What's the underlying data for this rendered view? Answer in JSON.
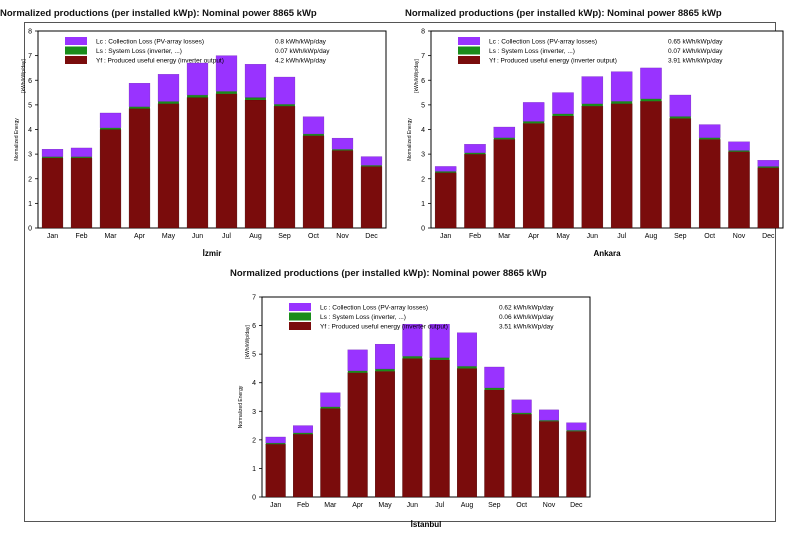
{
  "chart_data": [
    {
      "type": "bar",
      "title": "Normalized productions (per installed kWp):   Nominal power 8865 kWp",
      "city": "İzmir",
      "ylabel_left": "Normalized   Energy",
      "ylabel_right": "[kWh/kWp/day]",
      "ylim": [
        0,
        8
      ],
      "yticks": [
        "0",
        "1",
        "2",
        "3",
        "4",
        "5",
        "6",
        "7",
        "8"
      ],
      "categories": [
        "Jan",
        "Feb",
        "Mar",
        "Apr",
        "May",
        "Jun",
        "Jul",
        "Aug",
        "Sep",
        "Oct",
        "Nov",
        "Dec"
      ],
      "legend": [
        {
          "label": "Lc : Collection Loss (PV-array losses)",
          "value": "0.8 kWh/kWp/day"
        },
        {
          "label": "Ls : System Loss  (inverter, ...)",
          "value": "0.07 kWh/kWp/day"
        },
        {
          "label": "Yf : Produced useful energy  (inverter output)",
          "value": "4.2 kWh/kWp/day"
        }
      ],
      "series": [
        {
          "name": "Yf",
          "values": [
            2.85,
            2.85,
            4.0,
            4.85,
            5.05,
            5.3,
            5.45,
            5.2,
            4.95,
            3.75,
            3.15,
            2.5
          ]
        },
        {
          "name": "Ls",
          "values": [
            0.05,
            0.05,
            0.07,
            0.08,
            0.09,
            0.1,
            0.1,
            0.1,
            0.08,
            0.07,
            0.05,
            0.05
          ]
        },
        {
          "name": "Lc",
          "values": [
            0.3,
            0.35,
            0.6,
            0.95,
            1.1,
            1.3,
            1.45,
            1.35,
            1.1,
            0.7,
            0.45,
            0.35
          ]
        }
      ]
    },
    {
      "type": "bar",
      "title": "Normalized productions (per installed kWp):   Nominal power 8865 kWp",
      "city": "Ankara",
      "ylabel_left": "Normalized   Energy",
      "ylabel_right": "[kWh/kWp/day]",
      "ylim": [
        0,
        8
      ],
      "yticks": [
        "0",
        "1",
        "2",
        "3",
        "4",
        "5",
        "6",
        "7",
        "8"
      ],
      "categories": [
        "Jan",
        "Feb",
        "Mar",
        "Apr",
        "May",
        "Jun",
        "Jul",
        "Aug",
        "Sep",
        "Oct",
        "Nov",
        "Dec"
      ],
      "legend": [
        {
          "label": "Lc : Collection Loss (PV-array losses)",
          "value": "0.65 kWh/kWp/day"
        },
        {
          "label": "Ls : System Loss  (inverter, ...)",
          "value": "0.07 kWh/kWp/day"
        },
        {
          "label": "Yf : Produced useful energy  (inverter output)",
          "value": "3.91 kWh/kWp/day"
        }
      ],
      "series": [
        {
          "name": "Yf",
          "values": [
            2.25,
            3.0,
            3.6,
            4.25,
            4.55,
            4.95,
            5.05,
            5.15,
            4.45,
            3.6,
            3.1,
            2.45
          ]
        },
        {
          "name": "Ls",
          "values": [
            0.05,
            0.06,
            0.07,
            0.08,
            0.09,
            0.1,
            0.1,
            0.1,
            0.08,
            0.07,
            0.05,
            0.05
          ]
        },
        {
          "name": "Lc",
          "values": [
            0.2,
            0.34,
            0.43,
            0.77,
            0.86,
            1.1,
            1.2,
            1.25,
            0.87,
            0.53,
            0.35,
            0.25
          ]
        }
      ]
    },
    {
      "type": "bar",
      "title": "Normalized productions (per installed kWp):   Nominal power 8865 kWp",
      "city": "İstanbul",
      "ylabel_left": "Normalized   Energy",
      "ylabel_right": "[kWh/kWp/day]",
      "ylim": [
        0,
        7
      ],
      "yticks": [
        "0",
        "1",
        "2",
        "3",
        "4",
        "5",
        "6",
        "7"
      ],
      "categories": [
        "Jan",
        "Feb",
        "Mar",
        "Apr",
        "May",
        "Jun",
        "Jul",
        "Aug",
        "Sep",
        "Oct",
        "Nov",
        "Dec"
      ],
      "legend": [
        {
          "label": "Lc : Collection Loss (PV-array losses)",
          "value": "0.62 kWh/kWp/day"
        },
        {
          "label": "Ls : System Loss  (inverter, ...)",
          "value": "0.06 kWh/kWp/day"
        },
        {
          "label": "Yf : Produced useful energy  (inverter output)",
          "value": "3.51 kWh/kWp/day"
        }
      ],
      "series": [
        {
          "name": "Yf",
          "values": [
            1.85,
            2.2,
            3.1,
            4.35,
            4.4,
            4.85,
            4.8,
            4.5,
            3.75,
            2.9,
            2.65,
            2.3
          ]
        },
        {
          "name": "Ls",
          "values": [
            0.04,
            0.05,
            0.06,
            0.07,
            0.08,
            0.08,
            0.08,
            0.08,
            0.07,
            0.05,
            0.04,
            0.04
          ]
        },
        {
          "name": "Lc",
          "values": [
            0.21,
            0.25,
            0.49,
            0.73,
            0.87,
            1.12,
            1.17,
            1.17,
            0.73,
            0.45,
            0.36,
            0.26
          ]
        }
      ]
    }
  ],
  "colors": {
    "Lc": "#9933ff",
    "Ls": "#1a8c1a",
    "Yf": "#7a0c0c",
    "frame": "#555555"
  }
}
